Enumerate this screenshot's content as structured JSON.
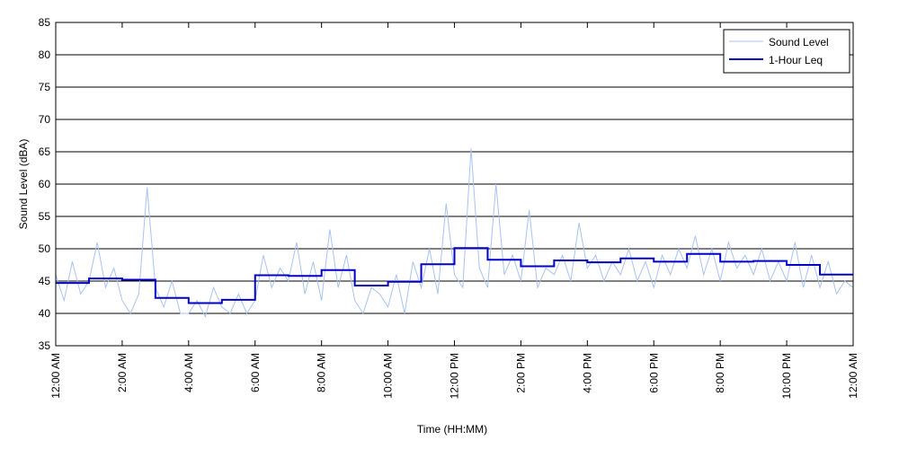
{
  "chart_data": {
    "type": "line",
    "xlabel": "Time (HH:MM)",
    "ylabel": "Sound Level (dBA)",
    "xlim": [
      0,
      24
    ],
    "ylim": [
      35,
      85
    ],
    "xticks": [
      {
        "value": 0,
        "label": "12:00 AM"
      },
      {
        "value": 2,
        "label": "2:00 AM"
      },
      {
        "value": 4,
        "label": "4:00 AM"
      },
      {
        "value": 6,
        "label": "6:00 AM"
      },
      {
        "value": 8,
        "label": "8:00 AM"
      },
      {
        "value": 10,
        "label": "10:00 AM"
      },
      {
        "value": 12,
        "label": "12:00 PM"
      },
      {
        "value": 14,
        "label": "2:00 PM"
      },
      {
        "value": 16,
        "label": "4:00 PM"
      },
      {
        "value": 18,
        "label": "6:00 PM"
      },
      {
        "value": 20,
        "label": "8:00 PM"
      },
      {
        "value": 22,
        "label": "10:00 PM"
      },
      {
        "value": 24,
        "label": "12:00 AM"
      }
    ],
    "yticks": [
      35,
      40,
      45,
      50,
      55,
      60,
      65,
      70,
      75,
      80,
      85
    ],
    "grid": true,
    "legend": "upper right",
    "series": [
      {
        "name": "Sound Level",
        "color": "#a9c3f0",
        "style": "line",
        "x": [
          0,
          0.25,
          0.5,
          0.75,
          1,
          1.25,
          1.5,
          1.75,
          2,
          2.25,
          2.5,
          2.75,
          3,
          3.25,
          3.5,
          3.75,
          4,
          4.25,
          4.5,
          4.75,
          5,
          5.25,
          5.5,
          5.75,
          6,
          6.25,
          6.5,
          6.75,
          7,
          7.25,
          7.5,
          7.75,
          8,
          8.25,
          8.5,
          8.75,
          9,
          9.25,
          9.5,
          9.75,
          10,
          10.25,
          10.5,
          10.75,
          11,
          11.25,
          11.5,
          11.75,
          12,
          12.25,
          12.5,
          12.75,
          13,
          13.25,
          13.5,
          13.75,
          14,
          14.25,
          14.5,
          14.75,
          15,
          15.25,
          15.5,
          15.75,
          16,
          16.25,
          16.5,
          16.75,
          17,
          17.25,
          17.5,
          17.75,
          18,
          18.25,
          18.5,
          18.75,
          19,
          19.25,
          19.5,
          19.75,
          20,
          20.25,
          20.5,
          20.75,
          21,
          21.25,
          21.5,
          21.75,
          22,
          22.25,
          22.5,
          22.75,
          23,
          23.25,
          23.5,
          23.75,
          24
        ],
        "values": [
          46,
          42,
          48,
          43,
          45,
          51,
          44,
          47,
          42,
          40,
          43,
          59.5,
          44,
          41,
          45,
          40,
          40,
          42,
          39.5,
          44,
          41,
          40,
          43,
          40,
          42,
          49,
          44,
          47,
          45,
          51,
          43,
          48,
          42,
          53,
          44,
          49,
          42,
          40,
          44,
          43,
          41,
          46,
          40,
          48,
          44,
          50,
          43,
          57,
          46,
          44,
          65.5,
          47,
          44,
          60,
          46,
          49,
          45,
          56,
          44,
          47,
          46,
          49,
          45,
          54,
          47,
          49,
          45,
          48,
          46,
          50,
          45,
          48,
          44,
          49,
          46,
          50,
          47,
          52,
          46,
          50,
          45,
          51,
          47,
          49,
          46,
          50,
          45,
          48,
          45,
          51,
          44,
          49,
          44,
          48,
          43,
          45,
          44
        ]
      },
      {
        "name": "1-Hour Leq",
        "color": "#0000c8",
        "style": "step",
        "x": [
          0,
          1,
          2,
          3,
          4,
          5,
          6,
          7,
          8,
          9,
          10,
          11,
          12,
          13,
          14,
          15,
          16,
          17,
          18,
          19,
          20,
          21,
          22,
          23
        ],
        "values": [
          44.7,
          45.4,
          45.2,
          42.4,
          41.6,
          42.1,
          45.9,
          45.8,
          46.7,
          44.3,
          44.9,
          47.6,
          50.1,
          48.3,
          47.3,
          48.2,
          47.9,
          48.5,
          48.0,
          49.2,
          48.0,
          48.1,
          47.5,
          46.0
        ]
      }
    ]
  }
}
